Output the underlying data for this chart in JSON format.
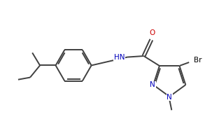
{
  "background_color": "#ffffff",
  "line_color": "#404040",
  "line_width": 1.4,
  "text_color": "#000000",
  "nitrogen_color": "#0000bb",
  "oxygen_color": "#cc0000",
  "figsize": [
    3.13,
    1.9
  ],
  "dpi": 100,
  "xlim": [
    0.0,
    10.0
  ],
  "ylim": [
    0.5,
    6.5
  ]
}
